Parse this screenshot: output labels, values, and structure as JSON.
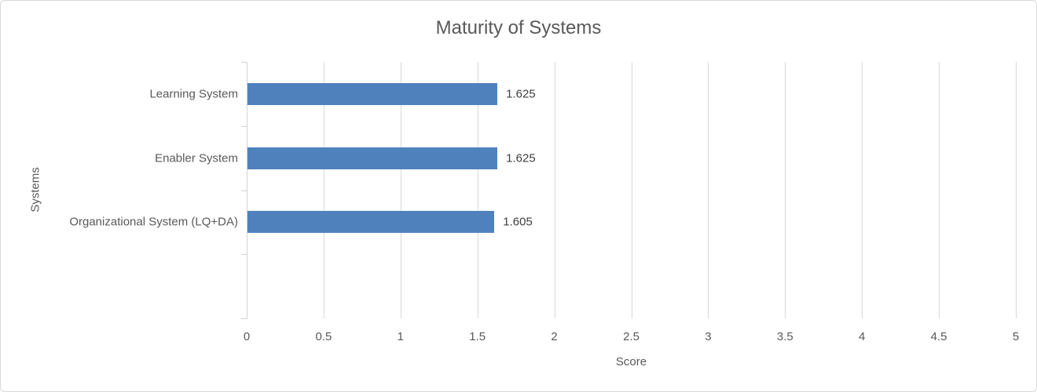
{
  "chart_data": {
    "type": "bar",
    "orientation": "horizontal",
    "title": "Maturity of Systems",
    "xlabel": "Score",
    "ylabel": "Systems",
    "categories": [
      "Learning System",
      "Enabler System",
      "Organizational System (LQ+DA)"
    ],
    "values": [
      1.625,
      1.625,
      1.605
    ],
    "data_labels": [
      "1.625",
      "1.625",
      "1.605"
    ],
    "xlim": [
      0,
      5
    ],
    "xticks": [
      0,
      0.5,
      1,
      1.5,
      2,
      2.5,
      3,
      3.5,
      4,
      4.5,
      5
    ],
    "xtick_labels": [
      "0",
      "0.5",
      "1",
      "1.5",
      "2",
      "2.5",
      "3",
      "3.5",
      "4",
      "4.5",
      "5"
    ],
    "category_slots": 4,
    "grid": true,
    "legend": false,
    "colors": {
      "bar": "#4F81BD",
      "gridline": "#D9D9D9",
      "axis": "#D3D3D3",
      "title_text": "#595959",
      "axis_text": "#595959",
      "data_label_text": "#404040",
      "border": "#D9D9D9",
      "background": "#FFFFFF"
    }
  }
}
